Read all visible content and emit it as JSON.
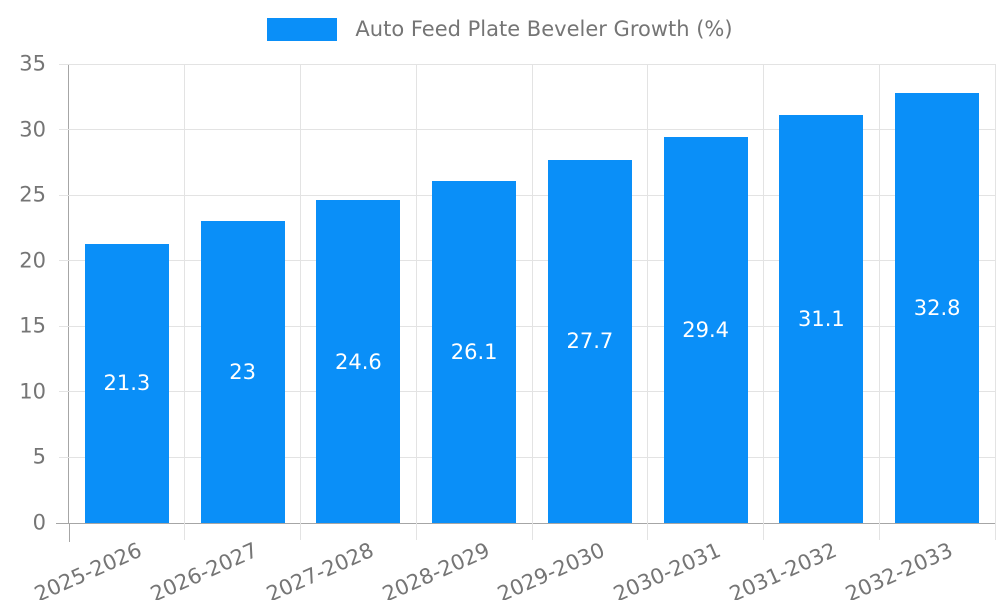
{
  "legend": {
    "label": "Auto Feed Plate Beveler Growth (%)"
  },
  "chart_data": {
    "type": "bar",
    "title": "",
    "series_name": "Auto Feed Plate Beveler Growth (%)",
    "categories": [
      "2025-2026",
      "2026-2027",
      "2027-2028",
      "2028-2029",
      "2029-2030",
      "2030-2031",
      "2031-2032",
      "2032-2033"
    ],
    "values": [
      21.3,
      23,
      24.6,
      26.1,
      27.7,
      29.4,
      31.1,
      32.8
    ],
    "value_labels": [
      "21.3",
      "23",
      "24.6",
      "26.1",
      "27.7",
      "29.4",
      "31.1",
      "32.8"
    ],
    "ylim": [
      0,
      35
    ],
    "y_ticks": [
      0,
      5,
      10,
      15,
      20,
      25,
      30,
      35
    ],
    "grid": true,
    "legend_position": "top",
    "value_label_position": "inside-center",
    "colors": {
      "bar": "#0a8ff8",
      "tick_text": "#757575",
      "grid_line": "#e3e3e3",
      "axis_line": "#a6a6a6",
      "value_label": "#ffffff",
      "background": "#ffffff"
    }
  }
}
